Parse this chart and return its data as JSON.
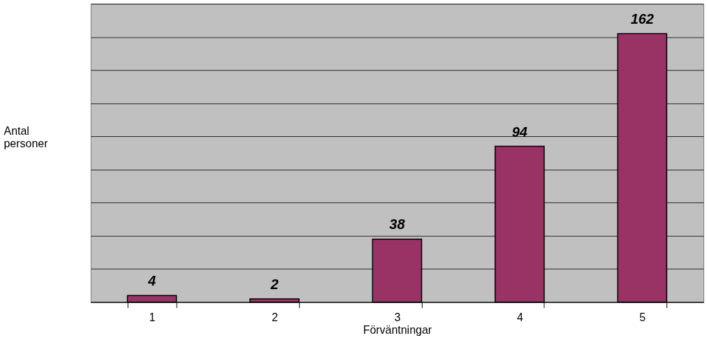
{
  "chart_data": {
    "type": "bar",
    "xlabel": "Förväntningar",
    "ylabel": "Antal personer",
    "categories": [
      "1",
      "2",
      "3",
      "4",
      "5"
    ],
    "values": [
      4,
      2,
      38,
      94,
      162
    ],
    "color": "#993366",
    "ylim": [
      0,
      180
    ],
    "yticks": [
      {
        "value": 0,
        "label": null
      },
      {
        "value": 20,
        "label": null
      },
      {
        "value": 40,
        "label": null
      },
      {
        "value": 60,
        "label": null
      },
      {
        "value": 80,
        "label": null
      },
      {
        "value": 100,
        "label": null
      },
      {
        "value": 120,
        "label": null
      },
      {
        "value": 140,
        "label": null
      },
      {
        "value": 160,
        "label": null
      },
      {
        "value": 180,
        "label": null
      }
    ],
    "tick_labels": "x",
    "grid": "y",
    "data_labels": true
  }
}
